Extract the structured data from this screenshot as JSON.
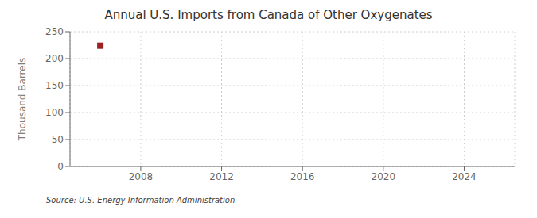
{
  "chart_data": {
    "type": "scatter",
    "title": "Annual U.S. Imports from Canada of Other Oxygenates",
    "ylabel": "Thousand Barrels",
    "annotations": [
      "Source: U.S. Energy Information Administration"
    ],
    "x": [
      2006
    ],
    "values": [
      224
    ],
    "color": "#9b2020",
    "marker": "square",
    "xlim": [
      2004.5,
      2026.5
    ],
    "xticks": [
      2008,
      2012,
      2016,
      2020,
      2024
    ],
    "ylim": [
      0,
      250
    ],
    "yticks": [
      0,
      50,
      100,
      150,
      200,
      250
    ],
    "grid": true
  }
}
